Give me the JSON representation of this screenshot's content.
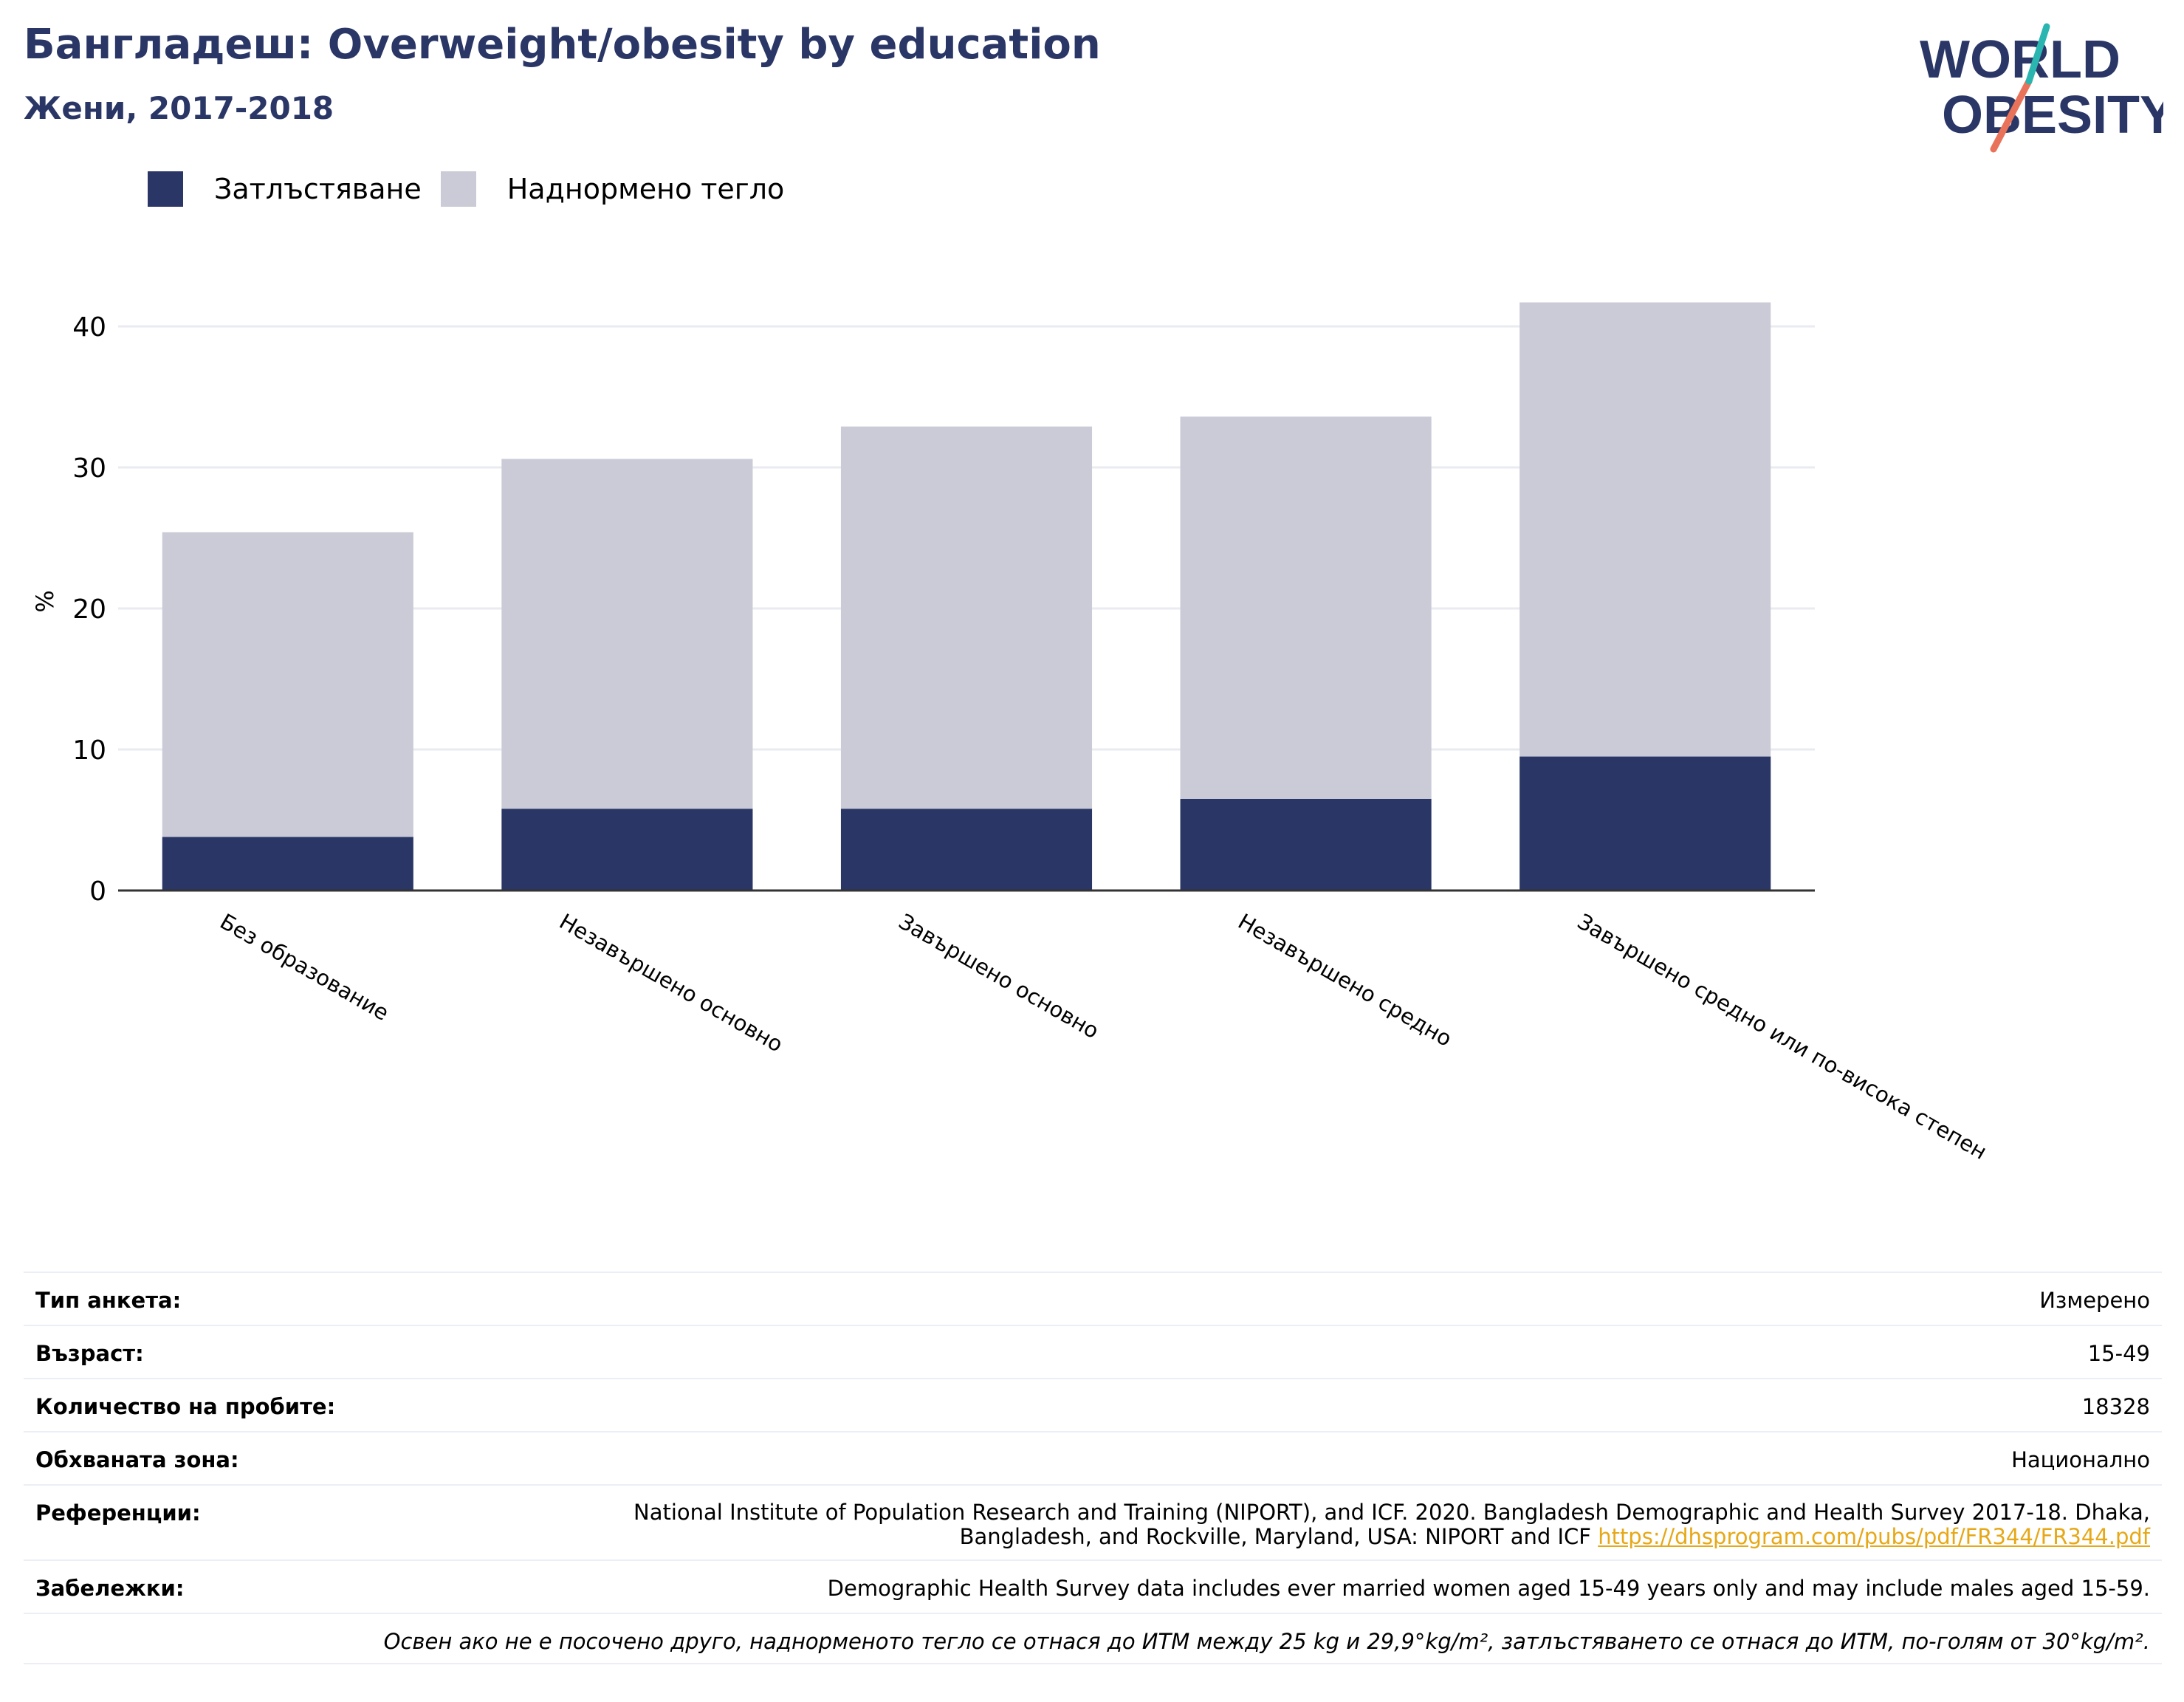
{
  "header": {
    "title": "Бангладеш: Overweight/obesity by education",
    "subtitle": "Жени, 2017-2018",
    "logo_line1": "WORLD",
    "logo_line2": "OBESITY"
  },
  "colors": {
    "obesity": "#2a3665",
    "overweight": "#cacbd7",
    "title": "#2a3665",
    "link": "#e6a817",
    "logo_teal": "#2bb5b0",
    "logo_coral": "#e8735a"
  },
  "legend": {
    "obesity": "Затлъстяване",
    "overweight": "Наднормено тегло"
  },
  "chart_data": {
    "type": "bar",
    "stacked": true,
    "categories": [
      "Без образование",
      "Незавършено основно",
      "Завършено основно",
      "Незавършено средно",
      "Завършено средно или по-висока степен"
    ],
    "series": [
      {
        "name": "Затлъстяване",
        "values": [
          3.8,
          5.8,
          5.8,
          6.5,
          9.5
        ]
      },
      {
        "name": "Наднормено тегло",
        "values": [
          21.6,
          24.8,
          27.1,
          27.1,
          32.2
        ]
      }
    ],
    "totals": [
      25.4,
      30.6,
      32.9,
      33.6,
      41.7
    ],
    "ylabel": "%",
    "ylim": [
      0,
      45
    ],
    "yticks": [
      "0",
      "10",
      "20",
      "30",
      "40"
    ],
    "grid": true,
    "legend_position": "top-left"
  },
  "meta": {
    "survey_type_label": "Тип анкета:",
    "survey_type_value": "Измерено",
    "age_label": "Възраст:",
    "age_value": "15-49",
    "sample_label": "Количество на пробите:",
    "sample_value": "18328",
    "area_label": "Обхваната зона:",
    "area_value": "Национално",
    "references_label": "Референции:",
    "references_text": "National Institute of Population Research and Training (NIPORT), and ICF. 2020. Bangladesh Demographic and Health Survey 2017-18. Dhaka, Bangladesh, and Rockville, Maryland, USA: NIPORT and ICF",
    "references_link": "https://dhsprogram.com/pubs/pdf/FR344/FR344.pdf",
    "notes_label": "Забележки:",
    "notes_value": "Demographic Health Survey data includes ever married women aged 15-49 years only and may include males aged 15-59.",
    "footnote": "Освен ако не е посочено друго, наднорменото тегло се отнася до ИТМ между 25 kg и 29,9°kg/m², затлъстяването се отнася до ИТМ, по-голям от 30°kg/m²."
  }
}
